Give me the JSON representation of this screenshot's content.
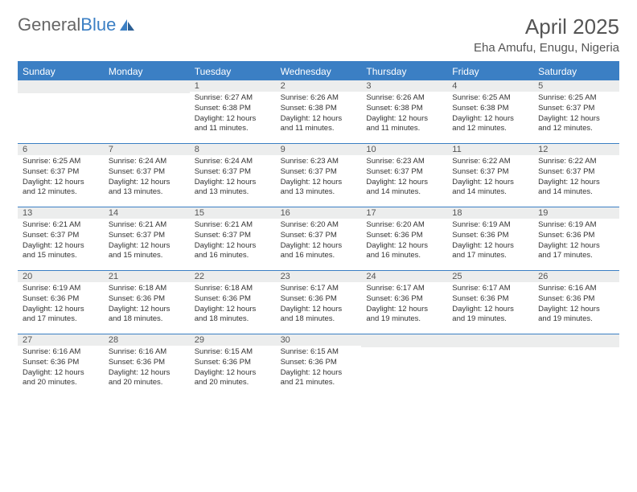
{
  "logo": {
    "part1": "General",
    "part2": "Blue"
  },
  "title": "April 2025",
  "location": "Eha Amufu, Enugu, Nigeria",
  "colors": {
    "brand": "#3b7fc4",
    "header_bg": "#3b7fc4",
    "header_text": "#ffffff",
    "daynum_bg": "#eceded",
    "text": "#333333",
    "muted": "#555555"
  },
  "day_names": [
    "Sunday",
    "Monday",
    "Tuesday",
    "Wednesday",
    "Thursday",
    "Friday",
    "Saturday"
  ],
  "weeks": [
    [
      {
        "empty": true
      },
      {
        "empty": true
      },
      {
        "n": "1",
        "sunrise": "Sunrise: 6:27 AM",
        "sunset": "Sunset: 6:38 PM",
        "daylight": "Daylight: 12 hours and 11 minutes."
      },
      {
        "n": "2",
        "sunrise": "Sunrise: 6:26 AM",
        "sunset": "Sunset: 6:38 PM",
        "daylight": "Daylight: 12 hours and 11 minutes."
      },
      {
        "n": "3",
        "sunrise": "Sunrise: 6:26 AM",
        "sunset": "Sunset: 6:38 PM",
        "daylight": "Daylight: 12 hours and 11 minutes."
      },
      {
        "n": "4",
        "sunrise": "Sunrise: 6:25 AM",
        "sunset": "Sunset: 6:38 PM",
        "daylight": "Daylight: 12 hours and 12 minutes."
      },
      {
        "n": "5",
        "sunrise": "Sunrise: 6:25 AM",
        "sunset": "Sunset: 6:37 PM",
        "daylight": "Daylight: 12 hours and 12 minutes."
      }
    ],
    [
      {
        "n": "6",
        "sunrise": "Sunrise: 6:25 AM",
        "sunset": "Sunset: 6:37 PM",
        "daylight": "Daylight: 12 hours and 12 minutes."
      },
      {
        "n": "7",
        "sunrise": "Sunrise: 6:24 AM",
        "sunset": "Sunset: 6:37 PM",
        "daylight": "Daylight: 12 hours and 13 minutes."
      },
      {
        "n": "8",
        "sunrise": "Sunrise: 6:24 AM",
        "sunset": "Sunset: 6:37 PM",
        "daylight": "Daylight: 12 hours and 13 minutes."
      },
      {
        "n": "9",
        "sunrise": "Sunrise: 6:23 AM",
        "sunset": "Sunset: 6:37 PM",
        "daylight": "Daylight: 12 hours and 13 minutes."
      },
      {
        "n": "10",
        "sunrise": "Sunrise: 6:23 AM",
        "sunset": "Sunset: 6:37 PM",
        "daylight": "Daylight: 12 hours and 14 minutes."
      },
      {
        "n": "11",
        "sunrise": "Sunrise: 6:22 AM",
        "sunset": "Sunset: 6:37 PM",
        "daylight": "Daylight: 12 hours and 14 minutes."
      },
      {
        "n": "12",
        "sunrise": "Sunrise: 6:22 AM",
        "sunset": "Sunset: 6:37 PM",
        "daylight": "Daylight: 12 hours and 14 minutes."
      }
    ],
    [
      {
        "n": "13",
        "sunrise": "Sunrise: 6:21 AM",
        "sunset": "Sunset: 6:37 PM",
        "daylight": "Daylight: 12 hours and 15 minutes."
      },
      {
        "n": "14",
        "sunrise": "Sunrise: 6:21 AM",
        "sunset": "Sunset: 6:37 PM",
        "daylight": "Daylight: 12 hours and 15 minutes."
      },
      {
        "n": "15",
        "sunrise": "Sunrise: 6:21 AM",
        "sunset": "Sunset: 6:37 PM",
        "daylight": "Daylight: 12 hours and 16 minutes."
      },
      {
        "n": "16",
        "sunrise": "Sunrise: 6:20 AM",
        "sunset": "Sunset: 6:37 PM",
        "daylight": "Daylight: 12 hours and 16 minutes."
      },
      {
        "n": "17",
        "sunrise": "Sunrise: 6:20 AM",
        "sunset": "Sunset: 6:36 PM",
        "daylight": "Daylight: 12 hours and 16 minutes."
      },
      {
        "n": "18",
        "sunrise": "Sunrise: 6:19 AM",
        "sunset": "Sunset: 6:36 PM",
        "daylight": "Daylight: 12 hours and 17 minutes."
      },
      {
        "n": "19",
        "sunrise": "Sunrise: 6:19 AM",
        "sunset": "Sunset: 6:36 PM",
        "daylight": "Daylight: 12 hours and 17 minutes."
      }
    ],
    [
      {
        "n": "20",
        "sunrise": "Sunrise: 6:19 AM",
        "sunset": "Sunset: 6:36 PM",
        "daylight": "Daylight: 12 hours and 17 minutes."
      },
      {
        "n": "21",
        "sunrise": "Sunrise: 6:18 AM",
        "sunset": "Sunset: 6:36 PM",
        "daylight": "Daylight: 12 hours and 18 minutes."
      },
      {
        "n": "22",
        "sunrise": "Sunrise: 6:18 AM",
        "sunset": "Sunset: 6:36 PM",
        "daylight": "Daylight: 12 hours and 18 minutes."
      },
      {
        "n": "23",
        "sunrise": "Sunrise: 6:17 AM",
        "sunset": "Sunset: 6:36 PM",
        "daylight": "Daylight: 12 hours and 18 minutes."
      },
      {
        "n": "24",
        "sunrise": "Sunrise: 6:17 AM",
        "sunset": "Sunset: 6:36 PM",
        "daylight": "Daylight: 12 hours and 19 minutes."
      },
      {
        "n": "25",
        "sunrise": "Sunrise: 6:17 AM",
        "sunset": "Sunset: 6:36 PM",
        "daylight": "Daylight: 12 hours and 19 minutes."
      },
      {
        "n": "26",
        "sunrise": "Sunrise: 6:16 AM",
        "sunset": "Sunset: 6:36 PM",
        "daylight": "Daylight: 12 hours and 19 minutes."
      }
    ],
    [
      {
        "n": "27",
        "sunrise": "Sunrise: 6:16 AM",
        "sunset": "Sunset: 6:36 PM",
        "daylight": "Daylight: 12 hours and 20 minutes."
      },
      {
        "n": "28",
        "sunrise": "Sunrise: 6:16 AM",
        "sunset": "Sunset: 6:36 PM",
        "daylight": "Daylight: 12 hours and 20 minutes."
      },
      {
        "n": "29",
        "sunrise": "Sunrise: 6:15 AM",
        "sunset": "Sunset: 6:36 PM",
        "daylight": "Daylight: 12 hours and 20 minutes."
      },
      {
        "n": "30",
        "sunrise": "Sunrise: 6:15 AM",
        "sunset": "Sunset: 6:36 PM",
        "daylight": "Daylight: 12 hours and 21 minutes."
      },
      {
        "empty": true
      },
      {
        "empty": true
      },
      {
        "empty": true
      }
    ]
  ]
}
